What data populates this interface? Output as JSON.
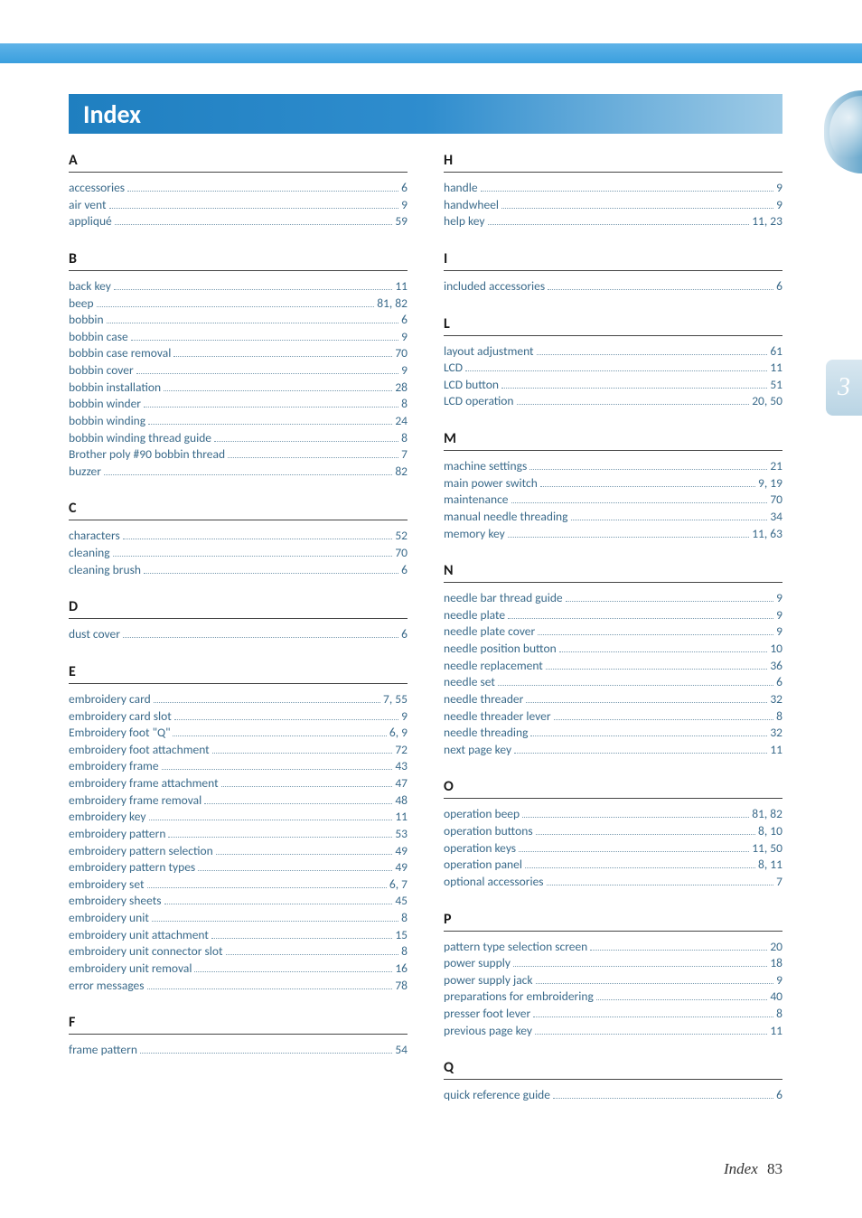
{
  "colors": {
    "top_bar_gradient": [
      "#5fb3e8",
      "#3a9fde"
    ],
    "title_gradient": [
      "#1f7fc0",
      "#2f8dce",
      "#9fcbe6"
    ],
    "title_text": "#ffffff",
    "entry_text": "#3a6a8a",
    "heading_text": "#1a1a1a",
    "side_tab_gradient": [
      "#d8e7f0",
      "#b9d4e4"
    ],
    "side_tab_number": "#ffffff",
    "background": "#ffffff"
  },
  "typography": {
    "title_fontsize": 28,
    "heading_fontsize": 16,
    "entry_fontsize": 13.5,
    "footer_fontsize": 17
  },
  "title": "Index",
  "side_tab_number": "3",
  "footer": {
    "label": "Index",
    "page": "83"
  },
  "left_sections": [
    {
      "letter": "A",
      "entries": [
        {
          "term": "accessories",
          "page": "6"
        },
        {
          "term": "air vent",
          "page": "9"
        },
        {
          "term": "appliqué",
          "page": "59"
        }
      ]
    },
    {
      "letter": "B",
      "entries": [
        {
          "term": "back key",
          "page": "11"
        },
        {
          "term": "beep",
          "page": "81, 82"
        },
        {
          "term": "bobbin",
          "page": "6"
        },
        {
          "term": "bobbin case",
          "page": "9"
        },
        {
          "term": "bobbin case removal",
          "page": "70"
        },
        {
          "term": "bobbin cover",
          "page": "9"
        },
        {
          "term": "bobbin installation",
          "page": "28"
        },
        {
          "term": "bobbin winder",
          "page": "8"
        },
        {
          "term": "bobbin winding",
          "page": "24"
        },
        {
          "term": "bobbin winding thread guide",
          "page": "8"
        },
        {
          "term": "Brother poly #90 bobbin thread",
          "page": "7"
        },
        {
          "term": "buzzer",
          "page": "82"
        }
      ]
    },
    {
      "letter": "C",
      "entries": [
        {
          "term": "characters",
          "page": "52"
        },
        {
          "term": "cleaning",
          "page": "70"
        },
        {
          "term": "cleaning brush",
          "page": "6"
        }
      ]
    },
    {
      "letter": "D",
      "entries": [
        {
          "term": "dust cover",
          "page": "6"
        }
      ]
    },
    {
      "letter": "E",
      "entries": [
        {
          "term": "embroidery card",
          "page": "7, 55"
        },
        {
          "term": "embroidery card slot",
          "page": "9"
        },
        {
          "term": "Embroidery foot \"Q\"",
          "page": "6, 9"
        },
        {
          "term": "embroidery foot attachment",
          "page": "72"
        },
        {
          "term": "embroidery frame",
          "page": "43"
        },
        {
          "term": "embroidery frame attachment",
          "page": "47"
        },
        {
          "term": "embroidery frame removal",
          "page": "48"
        },
        {
          "term": "embroidery key",
          "page": "11"
        },
        {
          "term": "embroidery pattern",
          "page": "53"
        },
        {
          "term": "embroidery pattern selection",
          "page": "49"
        },
        {
          "term": "embroidery pattern types",
          "page": "49"
        },
        {
          "term": "embroidery set",
          "page": "6, 7"
        },
        {
          "term": "embroidery sheets",
          "page": "45"
        },
        {
          "term": "embroidery unit",
          "page": "8"
        },
        {
          "term": "embroidery unit attachment",
          "page": "15"
        },
        {
          "term": "embroidery unit connector slot",
          "page": "8"
        },
        {
          "term": "embroidery unit removal",
          "page": "16"
        },
        {
          "term": "error messages",
          "page": "78"
        }
      ]
    },
    {
      "letter": "F",
      "entries": [
        {
          "term": "frame pattern",
          "page": "54"
        }
      ]
    }
  ],
  "right_sections": [
    {
      "letter": "H",
      "entries": [
        {
          "term": "handle",
          "page": "9"
        },
        {
          "term": "handwheel",
          "page": "9"
        },
        {
          "term": "help key",
          "page": "11, 23"
        }
      ]
    },
    {
      "letter": "I",
      "entries": [
        {
          "term": "included accessories",
          "page": "6"
        }
      ]
    },
    {
      "letter": "L",
      "entries": [
        {
          "term": "layout adjustment",
          "page": "61"
        },
        {
          "term": "LCD",
          "page": "11"
        },
        {
          "term": "LCD button",
          "page": "51"
        },
        {
          "term": "LCD operation",
          "page": "20, 50"
        }
      ]
    },
    {
      "letter": "M",
      "entries": [
        {
          "term": "machine settings",
          "page": "21"
        },
        {
          "term": "main power switch",
          "page": "9, 19"
        },
        {
          "term": "maintenance",
          "page": "70"
        },
        {
          "term": "manual needle threading",
          "page": "34"
        },
        {
          "term": "memory key",
          "page": "11, 63"
        }
      ]
    },
    {
      "letter": "N",
      "entries": [
        {
          "term": "needle bar thread guide",
          "page": "9"
        },
        {
          "term": "needle plate",
          "page": "9"
        },
        {
          "term": "needle plate cover",
          "page": "9"
        },
        {
          "term": "needle position button",
          "page": "10"
        },
        {
          "term": "needle replacement",
          "page": "36"
        },
        {
          "term": "needle set",
          "page": "6"
        },
        {
          "term": "needle threader",
          "page": "32"
        },
        {
          "term": "needle threader lever",
          "page": "8"
        },
        {
          "term": "needle threading",
          "page": "32"
        },
        {
          "term": "next page key",
          "page": "11"
        }
      ]
    },
    {
      "letter": "O",
      "entries": [
        {
          "term": "operation beep",
          "page": "81, 82"
        },
        {
          "term": "operation buttons",
          "page": "8, 10"
        },
        {
          "term": "operation keys",
          "page": "11, 50"
        },
        {
          "term": "operation panel",
          "page": "8, 11"
        },
        {
          "term": "optional accessories",
          "page": "7"
        }
      ]
    },
    {
      "letter": "P",
      "entries": [
        {
          "term": "pattern type selection screen",
          "page": "20"
        },
        {
          "term": "power supply",
          "page": "18"
        },
        {
          "term": "power supply jack",
          "page": "9"
        },
        {
          "term": "preparations for embroidering",
          "page": "40"
        },
        {
          "term": "presser foot lever",
          "page": "8"
        },
        {
          "term": "previous page key",
          "page": "11"
        }
      ]
    },
    {
      "letter": "Q",
      "entries": [
        {
          "term": "quick reference guide",
          "page": "6"
        }
      ]
    }
  ]
}
